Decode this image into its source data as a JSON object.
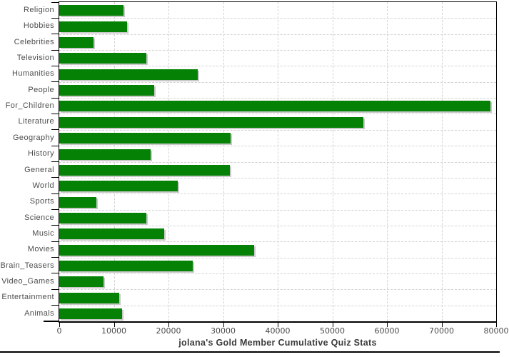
{
  "title": "jolana's Gold Member Cumulative Quiz Stats",
  "chart_data": {
    "type": "bar",
    "orientation": "horizontal",
    "title": "jolana's Gold Member Cumulative Quiz Stats",
    "categories": [
      "Religion",
      "Hobbies",
      "Celebrities",
      "Television",
      "Humanities",
      "People",
      "For_Children",
      "Literature",
      "Geography",
      "History",
      "General",
      "World",
      "Sports",
      "Science",
      "Music",
      "Movies",
      "Brain_Teasers",
      "Video_Games",
      "Entertainment",
      "Animals"
    ],
    "values": [
      11800,
      12400,
      6300,
      16000,
      25300,
      17400,
      79000,
      55700,
      31400,
      16700,
      31300,
      21700,
      6800,
      16000,
      19200,
      35700,
      24400,
      8100,
      11000,
      11500
    ],
    "xlabel": "",
    "ylabel": "",
    "xlim": [
      0,
      80000
    ],
    "x_ticks": [
      0,
      10000,
      20000,
      30000,
      40000,
      50000,
      60000,
      70000,
      80000
    ],
    "grid": "dashed",
    "legend": "none",
    "colors": {
      "bar": "#058205",
      "bar_shadow": "#c9c9c9",
      "gridline": "#d2d2d2",
      "axis": "#000000",
      "tick_label": "#4c4c4c",
      "title": "#3c3c3c",
      "background": "#ffffff"
    }
  }
}
